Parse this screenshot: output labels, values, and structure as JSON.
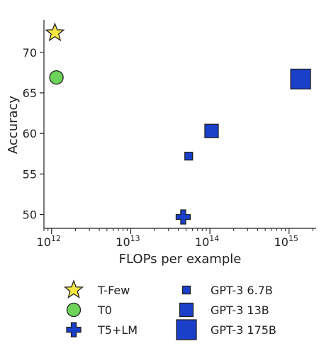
{
  "chart_data": {
    "type": "scatter",
    "title": "",
    "xlabel": "FLOPs per example",
    "ylabel": "Accuracy",
    "x_scale": "log",
    "xlim": [
      800000000000.0,
      2200000000000000.0
    ],
    "ylim": [
      48.3,
      74.0
    ],
    "x_ticks": [
      {
        "value": 1000000000000.0,
        "base": "10",
        "exp": "12"
      },
      {
        "value": 10000000000000.0,
        "base": "10",
        "exp": "13"
      },
      {
        "value": 100000000000000.0,
        "base": "10",
        "exp": "14"
      },
      {
        "value": 1000000000000000.0,
        "base": "10",
        "exp": "15"
      }
    ],
    "y_ticks": [
      50,
      55,
      60,
      65,
      70
    ],
    "grid": false,
    "legend_position": "below",
    "points": [
      {
        "name": "T-Few",
        "x": 1100000000000.0,
        "y": 72.4,
        "marker": "star",
        "color": "#f5e642"
      },
      {
        "name": "T0",
        "x": 1150000000000.0,
        "y": 66.9,
        "marker": "circle",
        "color": "#6dd35a"
      },
      {
        "name": "T5+LM",
        "x": 46000000000000.0,
        "y": 49.7,
        "marker": "plus",
        "color": "#1a3fc9"
      },
      {
        "name": "GPT-3 6.7B",
        "x": 54000000000000.0,
        "y": 57.2,
        "marker": "square",
        "size": "small",
        "color": "#1a3fc9"
      },
      {
        "name": "GPT-3 13B",
        "x": 105000000000000.0,
        "y": 60.3,
        "marker": "square",
        "size": "medium",
        "color": "#1a3fc9"
      },
      {
        "name": "GPT-3 175B",
        "x": 1400000000000000.0,
        "y": 66.7,
        "marker": "square",
        "size": "large",
        "color": "#1a3fc9"
      }
    ]
  }
}
